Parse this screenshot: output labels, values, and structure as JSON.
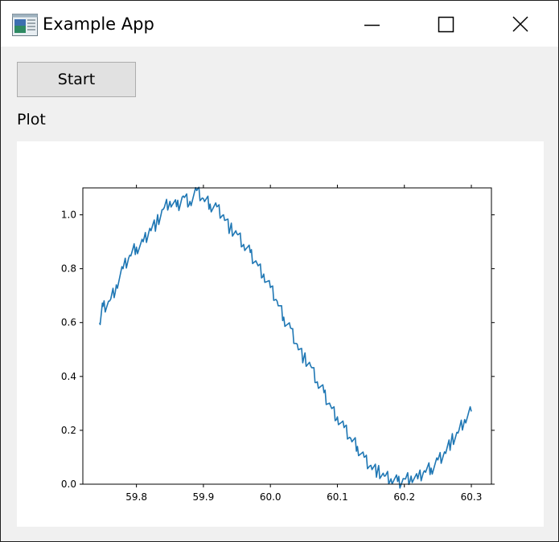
{
  "window": {
    "title": "Example App",
    "icon": "app-window-icon",
    "controls": [
      "minimize-icon",
      "maximize-icon",
      "close-icon"
    ]
  },
  "toolbar": {
    "start_label": "Start"
  },
  "plot": {
    "label": "Plot"
  },
  "chart_data": {
    "type": "line",
    "title": "",
    "xlabel": "",
    "ylabel": "",
    "xlim": [
      59.72,
      60.33
    ],
    "ylim": [
      0.0,
      1.1
    ],
    "grid": false,
    "xticks": [
      59.8,
      59.9,
      60.0,
      60.1,
      60.2,
      60.3
    ],
    "xtick_labels": [
      "59.8",
      "59.9",
      "60.0",
      "60.1",
      "60.2",
      "60.3"
    ],
    "yticks": [
      0.0,
      0.2,
      0.4,
      0.6,
      0.8,
      1.0
    ],
    "ytick_labels": [
      "0.0",
      "0.2",
      "0.4",
      "0.6",
      "0.8",
      "1.0"
    ],
    "series": [
      {
        "color": "#1f77b4",
        "x": [
          59.745,
          59.75,
          59.76,
          59.77,
          59.78,
          59.79,
          59.8,
          59.81,
          59.82,
          59.83,
          59.84,
          59.85,
          59.86,
          59.87,
          59.88,
          59.89,
          59.9,
          59.91,
          59.92,
          59.93,
          59.94,
          59.95,
          59.96,
          59.97,
          59.98,
          59.99,
          60.0,
          60.01,
          60.02,
          60.03,
          60.04,
          60.05,
          60.06,
          60.07,
          60.08,
          60.09,
          60.1,
          60.11,
          60.12,
          60.13,
          60.14,
          60.15,
          60.16,
          60.17,
          60.18,
          60.19,
          60.2,
          60.21,
          60.22,
          60.23,
          60.24,
          60.25,
          60.26,
          60.27,
          60.28,
          60.29,
          60.3
        ],
        "y": [
          0.6,
          0.66,
          0.68,
          0.74,
          0.8,
          0.85,
          0.88,
          0.9,
          0.95,
          0.97,
          1.02,
          1.05,
          1.03,
          1.07,
          1.05,
          1.09,
          1.06,
          1.04,
          1.03,
          1.0,
          0.95,
          0.93,
          0.89,
          0.86,
          0.82,
          0.78,
          0.73,
          0.68,
          0.62,
          0.58,
          0.52,
          0.47,
          0.44,
          0.38,
          0.34,
          0.29,
          0.25,
          0.21,
          0.17,
          0.14,
          0.1,
          0.07,
          0.05,
          0.03,
          0.02,
          0.01,
          0.02,
          0.03,
          0.02,
          0.05,
          0.06,
          0.09,
          0.12,
          0.16,
          0.19,
          0.24,
          0.27
        ]
      }
    ]
  }
}
